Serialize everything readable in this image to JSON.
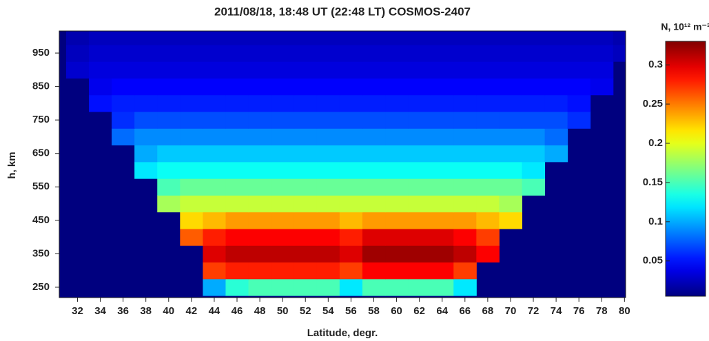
{
  "chart_data": {
    "type": "heatmap",
    "title": "2011/08/18, 18:48 UT  (22:48 LT)    COSMOS-2407",
    "x_label": "Latitude, degr.",
    "y_label": "h, km",
    "colorbar_label": "N, 10¹² m⁻³",
    "xlim": [
      30.4,
      80.1
    ],
    "xticks": [
      32,
      34,
      36,
      38,
      40,
      42,
      44,
      46,
      48,
      50,
      52,
      54,
      56,
      58,
      60,
      62,
      64,
      66,
      68,
      70,
      72,
      74,
      76,
      78,
      80
    ],
    "ylim": [
      219,
      1016
    ],
    "yticks": [
      250,
      350,
      450,
      550,
      650,
      750,
      850,
      950
    ],
    "zlim": [
      0.005,
      0.33
    ],
    "zticks": [
      0.05,
      0.1,
      0.15,
      0.2,
      0.25,
      0.3
    ],
    "colormap": "jet",
    "background": "#00007f",
    "x": [
      32,
      34,
      36,
      38,
      40,
      42,
      44,
      46,
      48,
      50,
      52,
      54,
      56,
      58,
      60,
      62,
      64,
      66,
      68,
      70,
      72,
      74,
      76,
      78,
      80
    ],
    "y": [
      250,
      300,
      350,
      400,
      450,
      500,
      550,
      600,
      650,
      700,
      750,
      800,
      850,
      900,
      950,
      1000
    ],
    "z": [
      [
        null,
        null,
        null,
        null,
        null,
        null,
        0.1,
        0.14,
        0.15,
        0.15,
        0.15,
        0.15,
        0.12,
        0.15,
        0.15,
        0.15,
        0.15,
        0.12,
        null,
        null,
        null,
        null,
        null,
        null,
        null
      ],
      [
        null,
        null,
        null,
        null,
        null,
        null,
        0.27,
        0.28,
        0.28,
        0.28,
        0.28,
        0.28,
        0.27,
        0.29,
        0.29,
        0.29,
        0.29,
        0.27,
        null,
        null,
        null,
        null,
        null,
        null,
        null
      ],
      [
        null,
        null,
        null,
        null,
        null,
        null,
        0.3,
        0.31,
        0.31,
        0.31,
        0.31,
        0.31,
        0.3,
        0.32,
        0.32,
        0.32,
        0.32,
        0.31,
        0.29,
        null,
        null,
        null,
        null,
        null,
        null
      ],
      [
        null,
        null,
        null,
        null,
        null,
        0.26,
        0.28,
        0.29,
        0.29,
        0.29,
        0.29,
        0.29,
        0.28,
        0.3,
        0.3,
        0.3,
        0.3,
        0.29,
        0.27,
        null,
        null,
        null,
        null,
        null,
        null
      ],
      [
        null,
        null,
        null,
        null,
        null,
        0.22,
        0.23,
        0.24,
        0.24,
        0.24,
        0.24,
        0.24,
        0.23,
        0.24,
        0.24,
        0.24,
        0.24,
        0.24,
        0.23,
        0.22,
        null,
        null,
        null,
        null,
        null
      ],
      [
        null,
        null,
        null,
        null,
        0.18,
        0.19,
        0.19,
        0.19,
        0.19,
        0.19,
        0.19,
        0.19,
        0.19,
        0.19,
        0.19,
        0.19,
        0.19,
        0.19,
        0.19,
        0.18,
        null,
        null,
        null,
        null,
        null
      ],
      [
        null,
        null,
        null,
        null,
        0.15,
        0.16,
        0.16,
        0.16,
        0.16,
        0.16,
        0.16,
        0.16,
        0.16,
        0.16,
        0.16,
        0.16,
        0.16,
        0.16,
        0.16,
        0.16,
        0.15,
        null,
        null,
        null,
        null
      ],
      [
        null,
        null,
        null,
        0.12,
        0.13,
        0.13,
        0.13,
        0.13,
        0.13,
        0.13,
        0.13,
        0.13,
        0.13,
        0.13,
        0.13,
        0.13,
        0.13,
        0.13,
        0.13,
        0.13,
        0.12,
        null,
        null,
        null,
        null
      ],
      [
        null,
        null,
        null,
        0.1,
        0.11,
        0.11,
        0.11,
        0.11,
        0.11,
        0.11,
        0.11,
        0.11,
        0.11,
        0.11,
        0.11,
        0.11,
        0.11,
        0.11,
        0.11,
        0.11,
        0.11,
        0.1,
        null,
        null,
        null
      ],
      [
        null,
        null,
        0.08,
        0.09,
        0.09,
        0.09,
        0.09,
        0.09,
        0.09,
        0.09,
        0.09,
        0.09,
        0.09,
        0.09,
        0.09,
        0.09,
        0.09,
        0.09,
        0.09,
        0.09,
        0.09,
        0.08,
        null,
        null,
        null
      ],
      [
        null,
        null,
        0.06,
        0.07,
        0.07,
        0.07,
        0.07,
        0.07,
        0.07,
        0.07,
        0.07,
        0.07,
        0.07,
        0.07,
        0.07,
        0.07,
        0.07,
        0.07,
        0.07,
        0.07,
        0.07,
        0.07,
        0.06,
        null,
        null
      ],
      [
        null,
        0.05,
        0.055,
        0.055,
        0.055,
        0.055,
        0.055,
        0.055,
        0.055,
        0.055,
        0.055,
        0.055,
        0.055,
        0.055,
        0.055,
        0.055,
        0.055,
        0.055,
        0.055,
        0.055,
        0.055,
        0.055,
        0.05,
        null,
        null
      ],
      [
        null,
        0.04,
        0.045,
        0.045,
        0.045,
        0.045,
        0.045,
        0.045,
        0.045,
        0.045,
        0.045,
        0.045,
        0.045,
        0.045,
        0.045,
        0.045,
        0.045,
        0.045,
        0.045,
        0.045,
        0.045,
        0.045,
        0.045,
        0.04,
        null
      ],
      [
        0.03,
        0.035,
        0.035,
        0.035,
        0.035,
        0.035,
        0.035,
        0.035,
        0.035,
        0.035,
        0.035,
        0.035,
        0.035,
        0.035,
        0.035,
        0.035,
        0.035,
        0.035,
        0.035,
        0.035,
        0.035,
        0.035,
        0.035,
        0.035,
        null
      ],
      [
        0.025,
        0.03,
        0.03,
        0.03,
        0.03,
        0.03,
        0.03,
        0.03,
        0.03,
        0.03,
        0.03,
        0.03,
        0.03,
        0.03,
        0.03,
        0.03,
        0.03,
        0.03,
        0.03,
        0.03,
        0.03,
        0.03,
        0.03,
        0.03,
        0.025
      ],
      [
        0.02,
        0.025,
        0.025,
        0.025,
        0.025,
        0.025,
        0.025,
        0.025,
        0.025,
        0.025,
        0.025,
        0.025,
        0.025,
        0.025,
        0.025,
        0.025,
        0.025,
        0.025,
        0.025,
        0.025,
        0.025,
        0.025,
        0.025,
        0.025,
        0.02
      ]
    ]
  }
}
